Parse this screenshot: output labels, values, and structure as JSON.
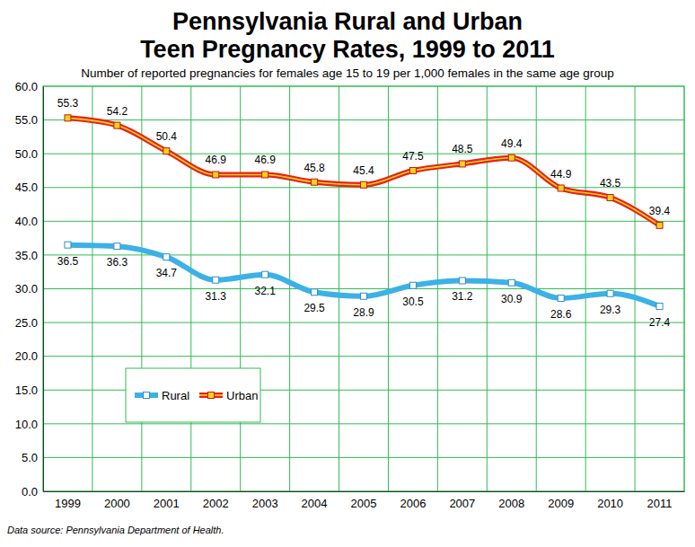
{
  "chart_data": {
    "type": "line",
    "title": [
      "Pennsylvania Rural and Urban",
      "Teen Pregnancy Rates, 1999 to 2011"
    ],
    "subtitle": "Number of reported pregnancies for females age 15 to 19 per 1,000 females in the same age group",
    "annotations": [
      "Data source: Pennsylvania Department of Health."
    ],
    "categories": [
      "1999",
      "2000",
      "2001",
      "2002",
      "2003",
      "2004",
      "2005",
      "2006",
      "2007",
      "2008",
      "2009",
      "2010",
      "2011"
    ],
    "series": [
      {
        "name": "Rural",
        "color": "#3cb1e6",
        "marker": "square",
        "values": [
          36.5,
          36.3,
          34.7,
          31.3,
          32.1,
          29.5,
          28.9,
          30.5,
          31.2,
          30.9,
          28.6,
          29.3,
          27.4
        ]
      },
      {
        "name": "Urban",
        "color": "#e3231c",
        "marker": "square",
        "values": [
          55.3,
          54.2,
          50.4,
          46.9,
          46.9,
          45.8,
          45.4,
          47.5,
          48.5,
          49.4,
          44.9,
          43.5,
          39.4
        ]
      }
    ],
    "ylim": [
      0,
      60
    ],
    "yticks": [
      {
        "value": 0,
        "label": "0.0"
      },
      {
        "value": 5,
        "label": "5.0"
      },
      {
        "value": 10,
        "label": "10.0"
      },
      {
        "value": 15,
        "label": "15.0"
      },
      {
        "value": 20,
        "label": "20.0"
      },
      {
        "value": 25,
        "label": "25.0"
      },
      {
        "value": 30,
        "label": "30.0"
      },
      {
        "value": 35,
        "label": "35.0"
      },
      {
        "value": 40,
        "label": "40.0"
      },
      {
        "value": 45,
        "label": "45.0"
      },
      {
        "value": 50,
        "label": "50.0"
      },
      {
        "value": 55,
        "label": "55.0"
      },
      {
        "value": 60,
        "label": "60.0"
      }
    ],
    "grid": true,
    "legend": "lower left",
    "data_labels": true
  }
}
